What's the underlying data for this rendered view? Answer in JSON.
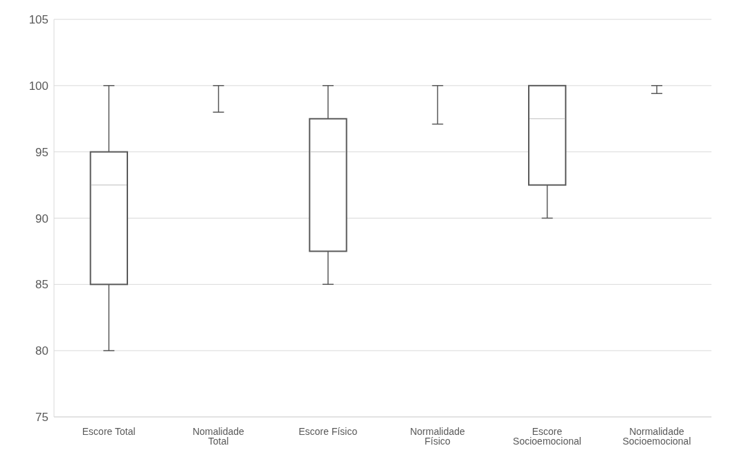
{
  "chart_data": {
    "type": "box",
    "categories": [
      "Escore Total",
      "Nomalidade Total",
      "Escore Físico",
      "Normalidade Físico",
      "Escore Socioemocional",
      "Normalidade Socioemocional"
    ],
    "boxes": [
      {
        "low": 80,
        "q1": 85,
        "median": 92.5,
        "q3": 95,
        "high": 100
      },
      {
        "low": 98,
        "q1": 100,
        "median": 100,
        "q3": 100,
        "high": 100
      },
      {
        "low": 85,
        "q1": 87.5,
        "median": 95,
        "q3": 97.5,
        "high": 100
      },
      {
        "low": 97.1,
        "q1": 100,
        "median": 100,
        "q3": 100,
        "high": 100
      },
      {
        "low": 90,
        "q1": 92.5,
        "median": 97.5,
        "q3": 100,
        "high": 100
      },
      {
        "low": 99.4,
        "q1": 100,
        "median": 100,
        "q3": 100,
        "high": 100
      }
    ],
    "color": "#595959",
    "ylim": [
      75,
      105
    ],
    "yticks": [
      75,
      80,
      85,
      90,
      95,
      100,
      105
    ],
    "grid": "y"
  }
}
